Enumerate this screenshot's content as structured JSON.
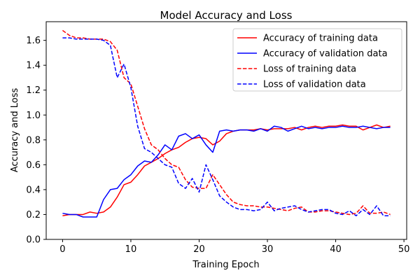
{
  "chart_data": {
    "type": "line",
    "title": "Model Accuracy and Loss",
    "xlabel": "Training Epoch",
    "ylabel": "Accuracy and Loss",
    "xlim": [
      -2.4,
      50.4
    ],
    "ylim": [
      0.0,
      1.75
    ],
    "xticks": [
      0,
      10,
      20,
      30,
      40,
      50
    ],
    "yticks": [
      0.0,
      0.2,
      0.4,
      0.6,
      0.8,
      1.0,
      1.2,
      1.4,
      1.6
    ],
    "grid": false,
    "legend_position": "top-right",
    "x": [
      0,
      1,
      2,
      3,
      4,
      5,
      6,
      7,
      8,
      9,
      10,
      11,
      12,
      13,
      14,
      15,
      16,
      17,
      18,
      19,
      20,
      21,
      22,
      23,
      24,
      25,
      26,
      27,
      28,
      29,
      30,
      31,
      32,
      33,
      34,
      35,
      36,
      37,
      38,
      39,
      40,
      41,
      42,
      43,
      44,
      45,
      46,
      47,
      48
    ],
    "series": [
      {
        "name": "Accuracy of training data",
        "color": "#ff0000",
        "dash": "solid",
        "values": [
          0.19,
          0.2,
          0.2,
          0.2,
          0.22,
          0.21,
          0.22,
          0.26,
          0.34,
          0.44,
          0.46,
          0.52,
          0.59,
          0.62,
          0.65,
          0.69,
          0.72,
          0.74,
          0.78,
          0.81,
          0.82,
          0.81,
          0.76,
          0.79,
          0.85,
          0.87,
          0.88,
          0.88,
          0.88,
          0.89,
          0.88,
          0.89,
          0.89,
          0.89,
          0.9,
          0.88,
          0.9,
          0.91,
          0.9,
          0.91,
          0.91,
          0.92,
          0.91,
          0.91,
          0.88,
          0.9,
          0.92,
          0.9,
          0.91
        ]
      },
      {
        "name": "Accuracy of validation data",
        "color": "#0000ff",
        "dash": "solid",
        "values": [
          0.21,
          0.2,
          0.2,
          0.18,
          0.18,
          0.18,
          0.32,
          0.4,
          0.41,
          0.48,
          0.52,
          0.59,
          0.63,
          0.62,
          0.68,
          0.76,
          0.72,
          0.83,
          0.85,
          0.81,
          0.84,
          0.76,
          0.7,
          0.87,
          0.88,
          0.87,
          0.88,
          0.88,
          0.87,
          0.89,
          0.87,
          0.91,
          0.9,
          0.87,
          0.89,
          0.91,
          0.89,
          0.9,
          0.89,
          0.9,
          0.9,
          0.91,
          0.9,
          0.9,
          0.91,
          0.9,
          0.89,
          0.9,
          0.9
        ]
      },
      {
        "name": "Loss of training data",
        "color": "#ff0000",
        "dash": "dashed",
        "values": [
          1.68,
          1.64,
          1.62,
          1.62,
          1.61,
          1.61,
          1.61,
          1.59,
          1.52,
          1.3,
          1.25,
          1.07,
          0.89,
          0.76,
          0.72,
          0.65,
          0.6,
          0.58,
          0.48,
          0.42,
          0.41,
          0.41,
          0.52,
          0.44,
          0.36,
          0.3,
          0.28,
          0.27,
          0.27,
          0.26,
          0.26,
          0.25,
          0.24,
          0.23,
          0.25,
          0.26,
          0.22,
          0.22,
          0.23,
          0.23,
          0.22,
          0.21,
          0.2,
          0.21,
          0.27,
          0.21,
          0.21,
          0.22,
          0.2
        ]
      },
      {
        "name": "Loss of validation data",
        "color": "#0000ff",
        "dash": "dashed",
        "values": [
          1.62,
          1.62,
          1.61,
          1.61,
          1.61,
          1.61,
          1.6,
          1.56,
          1.3,
          1.41,
          1.22,
          0.91,
          0.73,
          0.7,
          0.65,
          0.6,
          0.58,
          0.45,
          0.41,
          0.49,
          0.38,
          0.6,
          0.48,
          0.35,
          0.3,
          0.26,
          0.24,
          0.24,
          0.23,
          0.24,
          0.3,
          0.23,
          0.25,
          0.26,
          0.27,
          0.24,
          0.22,
          0.23,
          0.24,
          0.24,
          0.21,
          0.2,
          0.23,
          0.19,
          0.24,
          0.2,
          0.27,
          0.19,
          0.19
        ]
      }
    ]
  }
}
